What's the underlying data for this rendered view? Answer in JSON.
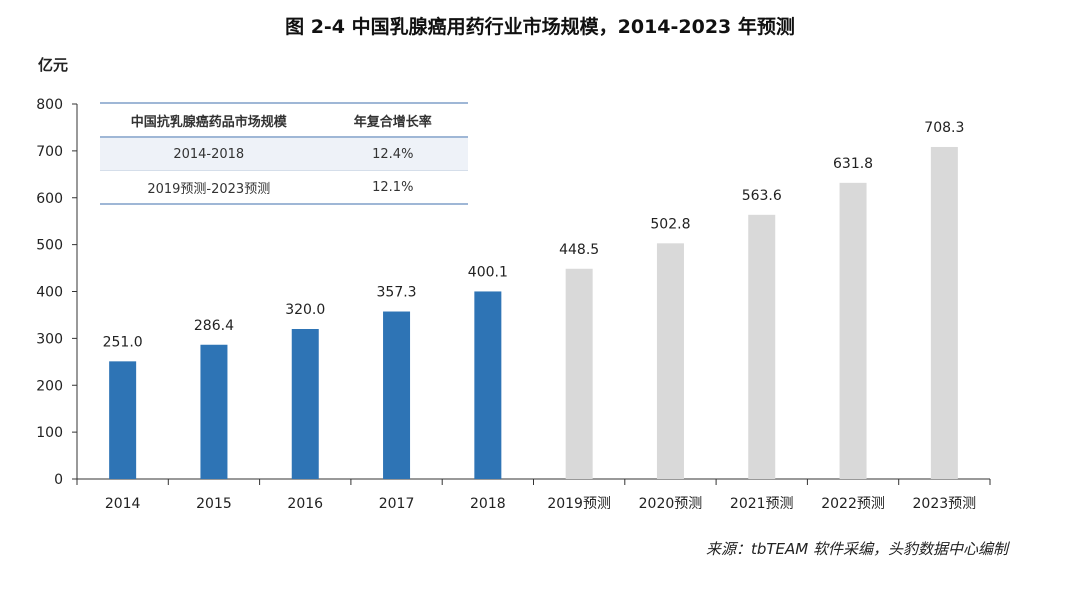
{
  "chart_data": {
    "type": "bar",
    "title": "图 2-4 中国乳腺癌用药行业市场规模，2014-2023 年预测",
    "ylabel": "亿元",
    "xlabel": "",
    "ylim": [
      0,
      800
    ],
    "yticks": [
      0,
      100,
      200,
      300,
      400,
      500,
      600,
      700,
      800
    ],
    "categories": [
      "2014",
      "2015",
      "2016",
      "2017",
      "2018",
      "2019预测",
      "2020预测",
      "2021预测",
      "2022预测",
      "2023预测"
    ],
    "values": [
      251.0,
      286.4,
      320.0,
      357.3,
      400.1,
      448.5,
      502.8,
      563.6,
      631.8,
      708.3
    ],
    "value_labels": [
      "251.0",
      "286.4",
      "320.0",
      "357.3",
      "400.1",
      "448.5",
      "502.8",
      "563.6",
      "631.8",
      "708.3"
    ],
    "series_type": [
      "actual",
      "actual",
      "actual",
      "actual",
      "actual",
      "forecast",
      "forecast",
      "forecast",
      "forecast",
      "forecast"
    ],
    "colors": {
      "actual": "#2e74b5",
      "forecast": "#d9d9d9",
      "axis": "#333333"
    }
  },
  "cagr_table": {
    "headers": [
      "中国抗乳腺癌药品市场规模",
      "年复合增长率"
    ],
    "rows": [
      [
        "2014-2018",
        "12.4%"
      ],
      [
        "2019预测-2023预测",
        "12.1%"
      ]
    ]
  },
  "source": "来源：tbTEAM 软件采编，头豹数据中心编制"
}
